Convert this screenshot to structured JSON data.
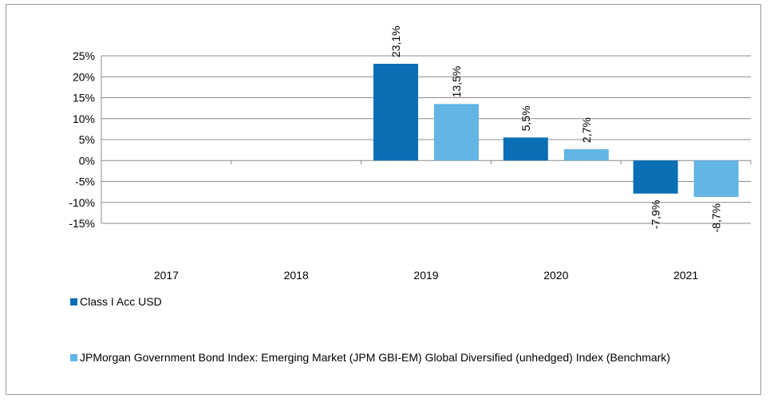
{
  "chart_data": {
    "type": "bar",
    "categories": [
      "2017",
      "2018",
      "2019",
      "2020",
      "2021"
    ],
    "series": [
      {
        "name": "Class I Acc USD",
        "color": "#0a6fb5",
        "values": [
          null,
          null,
          23.1,
          5.5,
          -7.9
        ],
        "labels": [
          "",
          "",
          "23,1%",
          "5,5%",
          "-7,9%"
        ]
      },
      {
        "name": "JPMorgan Government Bond Index: Emerging Market (JPM GBI-EM) Global Diversified (unhedged) Index (Benchmark)",
        "color": "#62b5e4",
        "values": [
          null,
          null,
          13.5,
          2.7,
          -8.7
        ],
        "labels": [
          "",
          "",
          "13,5%",
          "2,7%",
          "-8,7%"
        ]
      }
    ],
    "ylim": [
      -15,
      25
    ],
    "yticks": [
      25,
      20,
      15,
      10,
      5,
      0,
      -5,
      -10,
      -15
    ],
    "ytick_labels": [
      "25%",
      "20%",
      "15%",
      "10%",
      "5%",
      "0%",
      "-5%",
      "-10%",
      "-15%"
    ],
    "grid": true,
    "legend_position": "bottom",
    "title": "",
    "xlabel": "",
    "ylabel": ""
  }
}
